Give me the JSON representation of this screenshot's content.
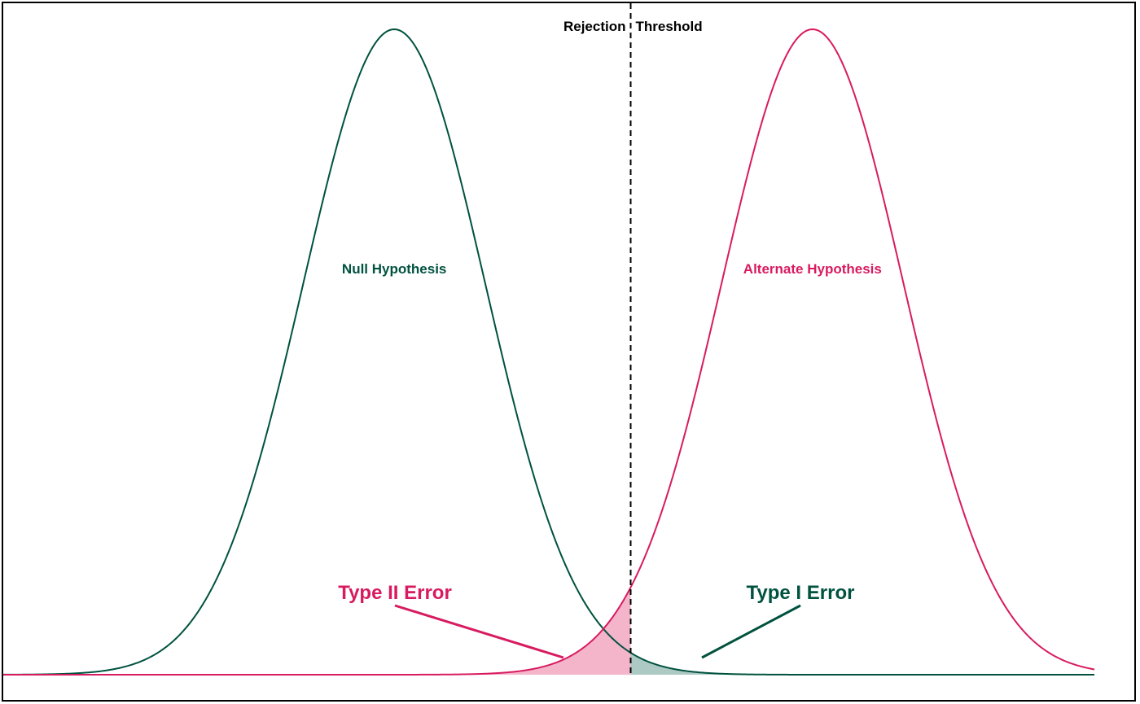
{
  "chart_data": {
    "type": "area",
    "title": "",
    "xlabel": "",
    "ylabel": "",
    "xlim": [
      -4.3,
      7.7
    ],
    "ylim": [
      0,
      1.0
    ],
    "grid": false,
    "threshold": {
      "x": 2.6,
      "label_left": "Rejection",
      "label_right": "Threshold"
    },
    "series": [
      {
        "name": "Null Hypothesis",
        "distribution": "normal",
        "mean": 0,
        "sd": 1,
        "peak": 1.0,
        "color": "#00523f"
      },
      {
        "name": "Alternate Hypothesis",
        "distribution": "normal",
        "mean": 4.6,
        "sd": 1,
        "peak": 1.0,
        "color": "#d81b60"
      }
    ],
    "regions": [
      {
        "name": "Type II Error",
        "under_series": "Alternate Hypothesis",
        "side": "left of threshold",
        "color": "#f4b5cb"
      },
      {
        "name": "Type I Error",
        "under_series": "Null Hypothesis",
        "side": "right of threshold",
        "color": "#adc9c4"
      }
    ],
    "annotations": [
      {
        "text": "Null Hypothesis",
        "color": "#00523f"
      },
      {
        "text": "Alternate Hypothesis",
        "color": "#d81b60"
      },
      {
        "text": "Type II Error",
        "color": "#d81b60"
      },
      {
        "text": "Type I Error",
        "color": "#00523f"
      }
    ]
  }
}
